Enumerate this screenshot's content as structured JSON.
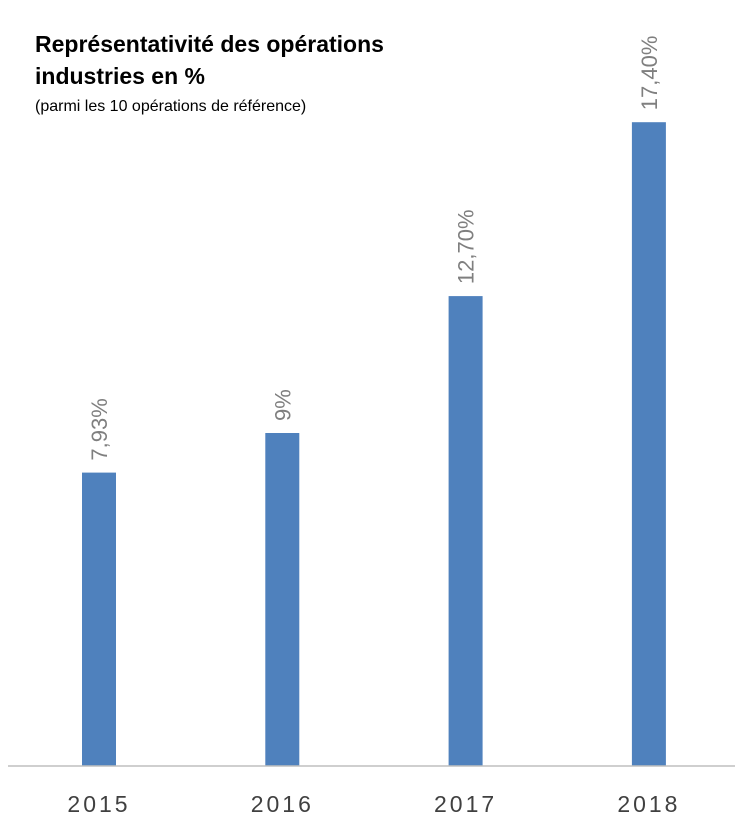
{
  "chart_data": {
    "type": "bar",
    "title": "Représentativité des opérations industries en %",
    "subtitle": "(parmi les 10 opérations de référence)",
    "categories": [
      "2015",
      "2016",
      "2017",
      "2018"
    ],
    "values": [
      7.93,
      9,
      12.7,
      17.4
    ],
    "data_labels": [
      "7,93%",
      "9%",
      "12,70%",
      "17,40%"
    ],
    "xlabel": "",
    "ylabel": "",
    "ylim": [
      0,
      20
    ],
    "grid": false,
    "legend": "none",
    "bar_color": "#4f81bd",
    "label_color": "#7f7f7f",
    "axis_color": "#bfbfbf",
    "tick_color": "#404040"
  }
}
